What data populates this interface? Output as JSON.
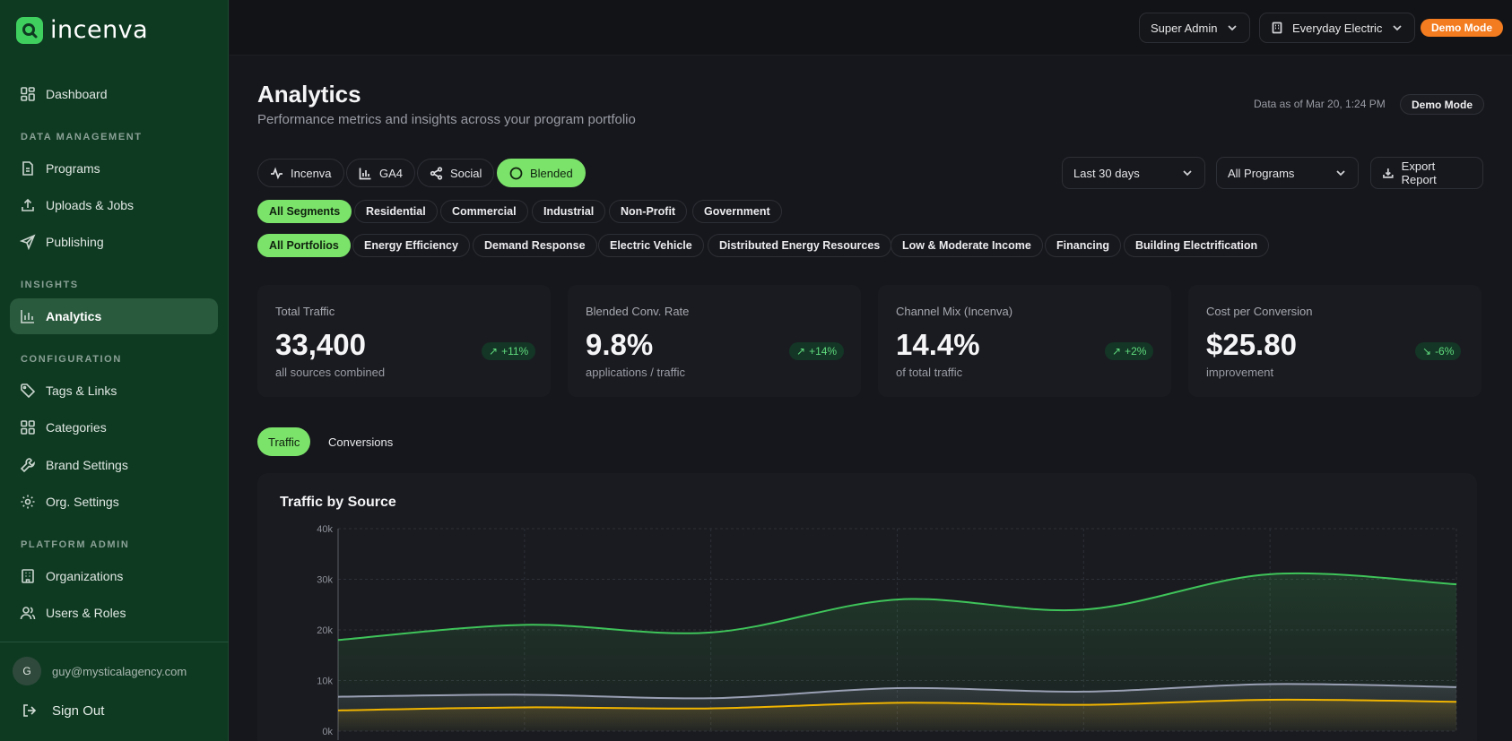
{
  "app": {
    "brand": "incenva"
  },
  "sidebar": {
    "sections": {
      "data_management": "DATA MANAGEMENT",
      "insights": "INSIGHTS",
      "configuration": "CONFIGURATION",
      "platform_admin": "PLATFORM ADMIN"
    },
    "items": [
      {
        "label": "Dashboard",
        "icon": "dashboard-icon"
      },
      {
        "label": "Programs",
        "icon": "document-icon"
      },
      {
        "label": "Uploads & Jobs",
        "icon": "upload-icon"
      },
      {
        "label": "Publishing",
        "icon": "send-icon"
      },
      {
        "label": "Analytics",
        "icon": "bar-chart-icon",
        "active": true
      },
      {
        "label": "Tags & Links",
        "icon": "tag-icon"
      },
      {
        "label": "Categories",
        "icon": "grid-icon"
      },
      {
        "label": "Brand Settings",
        "icon": "wrench-icon"
      },
      {
        "label": "Org. Settings",
        "icon": "gear-icon"
      },
      {
        "label": "Organizations",
        "icon": "building-icon"
      },
      {
        "label": "Users & Roles",
        "icon": "users-icon"
      }
    ],
    "user": {
      "initial": "G",
      "email": "guy@mysticalagency.com"
    },
    "signout": "Sign Out"
  },
  "topbar": {
    "role": "Super Admin",
    "org": "Everyday Electric",
    "demo_badge": "Demo Mode"
  },
  "header": {
    "title": "Analytics",
    "subtitle": "Performance metrics and insights across your program portfolio",
    "data_asof": "Data as of Mar 20, 1:24 PM",
    "demo_pill": "Demo Mode"
  },
  "source_tabs": [
    "Incenva",
    "GA4",
    "Social",
    "Blended"
  ],
  "filters": {
    "range": "Last 30 days",
    "programs": "All Programs",
    "export": "Export Report"
  },
  "segments": [
    "All Segments",
    "Residential",
    "Commercial",
    "Industrial",
    "Non-Profit",
    "Government"
  ],
  "portfolios": [
    "All Portfolios",
    "Energy Efficiency",
    "Demand Response",
    "Electric Vehicle",
    "Distributed Energy Resources",
    "Low & Moderate Income",
    "Financing",
    "Building Electrification"
  ],
  "kpis": [
    {
      "label": "Total Traffic",
      "value": "33,400",
      "sub": "all sources combined",
      "delta": "+11%",
      "trend": "up"
    },
    {
      "label": "Blended Conv. Rate",
      "value": "9.8%",
      "sub": "applications / traffic",
      "delta": "+14%",
      "trend": "up"
    },
    {
      "label": "Channel Mix (Incenva)",
      "value": "14.4%",
      "sub": "of total traffic",
      "delta": "+2%",
      "trend": "up"
    },
    {
      "label": "Cost per Conversion",
      "value": "$25.80",
      "sub": "improvement",
      "delta": "-6%",
      "trend": "down"
    }
  ],
  "chart_tabs": [
    "Traffic",
    "Conversions"
  ],
  "chart": {
    "title": "Traffic by Source"
  },
  "chart_data": {
    "type": "area",
    "title": "Traffic by Source",
    "ylim": [
      0,
      40000
    ],
    "yticks": [
      "0k",
      "10k",
      "20k",
      "30k",
      "40k"
    ],
    "x": [
      0,
      1,
      2,
      3,
      4,
      5,
      6
    ],
    "grid": true,
    "series": [
      {
        "color": "#3fc45a",
        "values": [
          18000,
          21000,
          19500,
          26000,
          24000,
          31000,
          29000
        ]
      },
      {
        "color": "#9aa0b4",
        "values": [
          6800,
          7200,
          6500,
          8500,
          7800,
          9300,
          8700
        ]
      },
      {
        "color": "#f0b400",
        "values": [
          4100,
          4700,
          4500,
          5600,
          5200,
          6200,
          5800
        ]
      }
    ]
  }
}
